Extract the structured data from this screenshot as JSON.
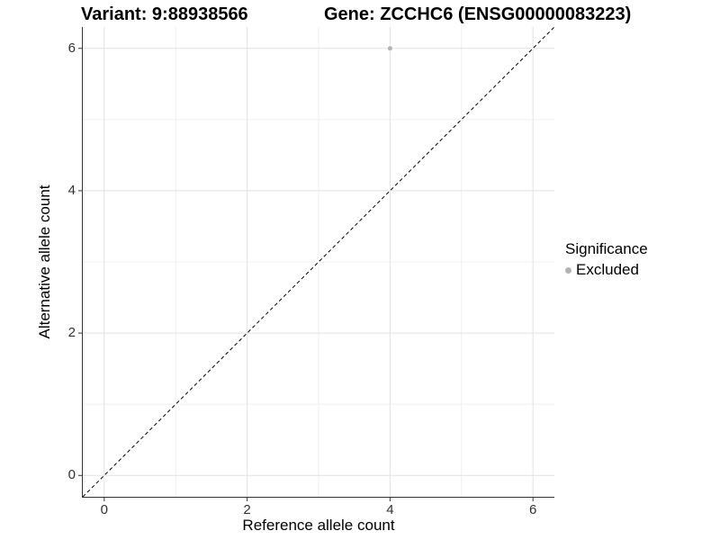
{
  "titles": {
    "variant": "Variant: 9:88938566",
    "gene": "Gene: ZCCHC6 (ENSG00000083223)"
  },
  "chart_data": {
    "type": "scatter",
    "xlabel": "Reference allele count",
    "ylabel": "Alternative allele count",
    "xlim": [
      -0.3,
      6.3
    ],
    "ylim": [
      -0.3,
      6.3
    ],
    "x_ticks": [
      0,
      2,
      4,
      6
    ],
    "y_ticks": [
      0,
      2,
      4,
      6
    ],
    "x_minor_ticks": [
      1,
      3,
      5
    ],
    "y_minor_ticks": [
      1,
      3,
      5
    ],
    "grid": true,
    "series": [
      {
        "name": "Excluded",
        "color": "#b3b3b3",
        "points": [
          [
            4,
            6
          ]
        ]
      }
    ],
    "identity_line": {
      "style": "dashed",
      "color": "#000000",
      "from": [
        -0.3,
        -0.3
      ],
      "to": [
        6.3,
        6.3
      ]
    },
    "legend": {
      "title": "Significance",
      "position": "right",
      "items": [
        {
          "label": "Excluded",
          "color": "#b3b3b3",
          "marker": "circle"
        }
      ]
    }
  },
  "colors": {
    "background": "#ffffff",
    "major_grid": "#e2e2e2",
    "minor_grid": "#efefef",
    "axis": "#333333",
    "tick_text": "#303030",
    "title_text": "#000000"
  }
}
